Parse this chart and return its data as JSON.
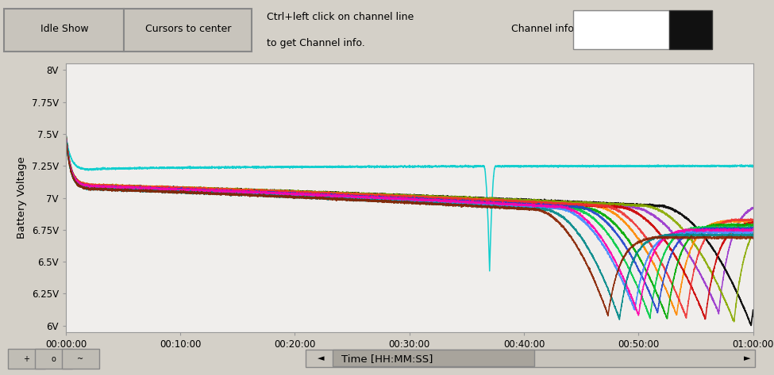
{
  "xlabel": "Time [HH:MM:SS]",
  "ylabel": "Battery Voltage",
  "yticks": [
    6.0,
    6.25,
    6.5,
    6.75,
    7.0,
    7.25,
    7.5,
    7.75,
    8.0
  ],
  "ytick_labels": [
    "6V",
    "6.25V",
    "6.5V",
    "6.75V",
    "7V",
    "7.25V",
    "7.5V",
    "7.75V",
    "8V"
  ],
  "ylim": [
    5.95,
    8.05
  ],
  "xlim_seconds": [
    0,
    3600
  ],
  "xtick_seconds": [
    0,
    600,
    1200,
    1800,
    2400,
    3000,
    3600
  ],
  "xtick_labels": [
    "00:00:00",
    "00:10:00",
    "00:20:00",
    "00:30:00",
    "00:40:00",
    "00:50:00",
    "01:00:00"
  ],
  "bg_color": "#d4d0c8",
  "plot_bg_color": "#f0eeec",
  "header_bg": "#d4d0c8",
  "button_text": [
    "Idle Show",
    "Cursors to center"
  ],
  "info_text_line1": "Ctrl+left click on channel line",
  "info_text_line2": "to get Channel info.",
  "channel_info_label": "Channel info"
}
